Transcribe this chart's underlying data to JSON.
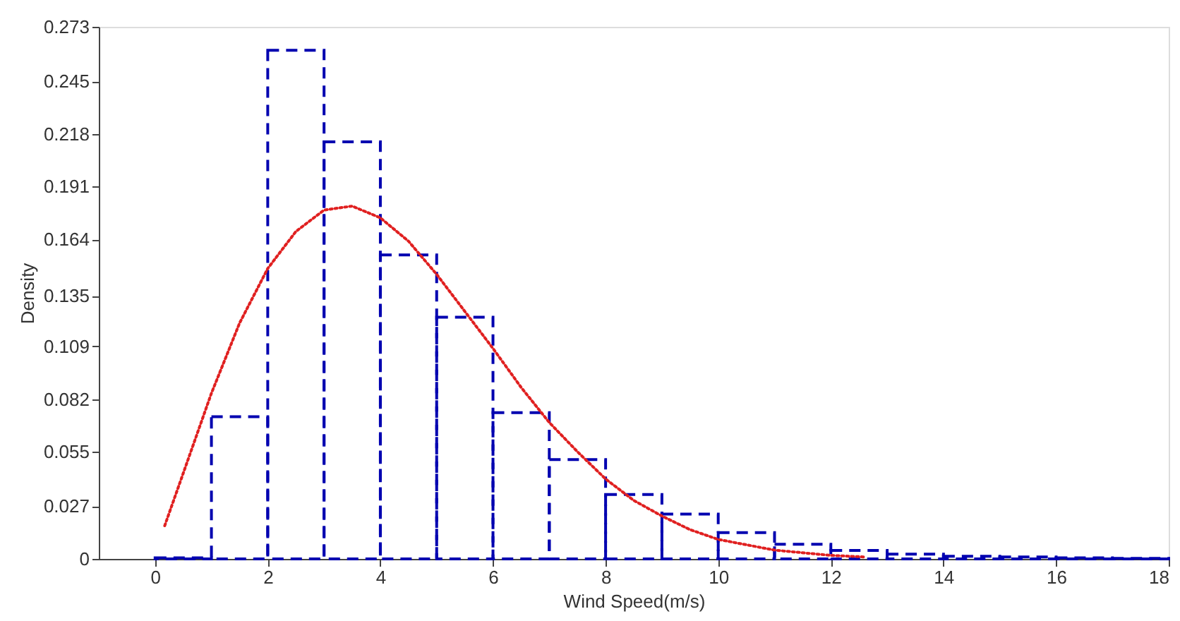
{
  "chart_data": {
    "type": "histogram",
    "xlabel": "Wind Speed(m/s)",
    "ylabel": "Density",
    "xlim": [
      -1,
      18
    ],
    "xticks": [
      0,
      2,
      4,
      6,
      8,
      10,
      12,
      14,
      16,
      18
    ],
    "ylim": [
      0,
      0.273
    ],
    "yticks": [
      0,
      0.027,
      0.055,
      0.082,
      0.109,
      0.135,
      0.164,
      0.191,
      0.218,
      0.245,
      0.273
    ],
    "grid": false,
    "bins": [
      0,
      1,
      2,
      3,
      4,
      5,
      6,
      7,
      8,
      9,
      10,
      11,
      12,
      13,
      14,
      15,
      16,
      17,
      18
    ],
    "series": [
      {
        "color": "#0000b0",
        "line_style": "dashed",
        "values": [
          0.0005,
          0.073,
          0.261,
          0.214,
          0.156,
          0.124,
          0.075,
          0.051,
          0.033,
          0.023,
          0.0135,
          0.0075,
          0.0043,
          0.0024,
          0.0014,
          0.001,
          0.0005,
          0.0003
        ]
      },
      {
        "type": "line",
        "color": "#e02020",
        "line_style": "dotted",
        "x": [
          0.17,
          0.5,
          1,
          1.5,
          2,
          2.5,
          3,
          3.5,
          4,
          4.5,
          5,
          5.5,
          6,
          6.5,
          7,
          7.5,
          8,
          8.5,
          9,
          9.5,
          10,
          11,
          12,
          12.6
        ],
        "values": [
          0.017,
          0.044,
          0.085,
          0.121,
          0.149,
          0.168,
          0.179,
          0.181,
          0.175,
          0.163,
          0.146,
          0.127,
          0.108,
          0.088,
          0.07,
          0.055,
          0.041,
          0.03,
          0.022,
          0.015,
          0.01,
          0.0045,
          0.0018,
          0.001
        ]
      }
    ]
  }
}
